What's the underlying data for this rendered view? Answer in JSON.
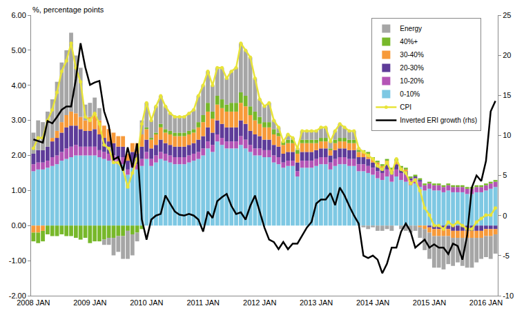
{
  "chart_data": {
    "type": "bar",
    "stacked": true,
    "y_label": "%, percentage points",
    "categories": [
      "2008 JAN",
      null,
      null,
      null,
      null,
      null,
      null,
      null,
      null,
      null,
      null,
      null,
      "2009 JAN",
      null,
      null,
      null,
      null,
      null,
      null,
      null,
      null,
      null,
      null,
      null,
      "2010 JAN",
      null,
      null,
      null,
      null,
      null,
      null,
      null,
      null,
      null,
      null,
      null,
      "2011 JAN",
      null,
      null,
      null,
      null,
      null,
      null,
      null,
      null,
      null,
      null,
      null,
      "2012 JAN",
      null,
      null,
      null,
      null,
      null,
      null,
      null,
      null,
      null,
      null,
      null,
      "2013 JAN",
      null,
      null,
      null,
      null,
      null,
      null,
      null,
      null,
      null,
      null,
      null,
      "2014 JAN",
      null,
      null,
      null,
      null,
      null,
      null,
      null,
      null,
      null,
      null,
      null,
      "2015 JAN",
      null,
      null,
      null,
      null,
      null,
      null,
      null,
      null,
      null,
      null,
      null,
      "2016 JAN",
      null,
      null
    ],
    "series": [
      {
        "name": "Energy",
        "type": "bar",
        "color": "#A6A6A6",
        "values": [
          0.6,
          0.85,
          0.8,
          1.0,
          1.1,
          1.4,
          1.7,
          1.85,
          2.25,
          1.65,
          1.4,
          0.45,
          0.4,
          0.45,
          0.35,
          -0.15,
          -0.2,
          -0.5,
          -0.45,
          -0.65,
          -0.8,
          -0.6,
          -0.25,
          0.4,
          0.7,
          0.5,
          0.75,
          0.8,
          0.65,
          0.5,
          0.45,
          0.45,
          0.45,
          0.5,
          0.55,
          0.75,
          0.85,
          0.9,
          0.75,
          0.8,
          0.9,
          0.75,
          0.9,
          1.0,
          1.4,
          1.3,
          1.4,
          0.95,
          0.5,
          0.45,
          0.55,
          0.25,
          0.15,
          0.0,
          0.15,
          0.05,
          0.05,
          0.25,
          0.25,
          0.25,
          0.25,
          0.3,
          0.3,
          0.2,
          0.25,
          0.4,
          0.3,
          0.25,
          0.25,
          0.05,
          -0.05,
          -0.1,
          -0.05,
          -0.15,
          -0.15,
          -0.1,
          -0.15,
          0.0,
          -0.1,
          -0.15,
          -0.2,
          -0.15,
          -0.3,
          -0.6,
          -0.75,
          -0.9,
          -0.9,
          -0.95,
          -0.8,
          -0.8,
          -0.7,
          -0.8,
          -0.85,
          -0.85,
          -0.7,
          -0.6,
          -0.6,
          -0.65,
          -0.55
        ]
      },
      {
        "name": "40%+",
        "type": "bar",
        "color": "#77B82A",
        "values": [
          -0.25,
          -0.3,
          -0.3,
          -0.25,
          -0.3,
          -0.3,
          -0.25,
          -0.3,
          -0.3,
          -0.35,
          -0.4,
          -0.35,
          -0.5,
          -0.45,
          -0.45,
          -0.4,
          -0.35,
          -0.35,
          -0.3,
          -0.3,
          -0.15,
          -0.25,
          -0.2,
          -0.1,
          0.05,
          0.05,
          0.05,
          0.1,
          0.1,
          0.1,
          0.1,
          0.1,
          0.1,
          0.1,
          0.1,
          0.15,
          0.2,
          0.25,
          0.2,
          0.25,
          0.25,
          0.2,
          0.25,
          0.25,
          0.3,
          0.3,
          0.25,
          0.25,
          0.2,
          0.15,
          0.15,
          0.15,
          0.1,
          0.1,
          0.1,
          0.1,
          0.1,
          0.1,
          0.1,
          0.1,
          0.1,
          0.1,
          0.1,
          0.05,
          0.1,
          0.1,
          0.1,
          0.1,
          0.1,
          0.05,
          0.05,
          0.05,
          0.05,
          0.05,
          0.05,
          0.05,
          0.05,
          0.05,
          0.05,
          0.05,
          0.05,
          0.05,
          0.05,
          0.05,
          0.05,
          0.05,
          0.05,
          0.05,
          0.05,
          0.05,
          0.05,
          0.05,
          0.05,
          0.05,
          0.05,
          0.05,
          0.05,
          0.05,
          0.05
        ]
      },
      {
        "name": "30-40%",
        "type": "bar",
        "color": "#F79A3A",
        "values": [
          -0.2,
          -0.2,
          -0.15,
          0.0,
          0.1,
          0.2,
          0.3,
          0.35,
          0.4,
          0.35,
          0.35,
          0.3,
          0.4,
          0.45,
          0.4,
          0.35,
          0.35,
          0.3,
          0.3,
          0.3,
          0.2,
          0.25,
          0.3,
          0.35,
          0.3,
          0.25,
          0.3,
          0.35,
          0.3,
          0.3,
          0.3,
          0.3,
          0.3,
          0.3,
          0.3,
          0.35,
          0.4,
          0.45,
          0.4,
          0.45,
          0.45,
          0.45,
          0.45,
          0.45,
          0.5,
          0.5,
          0.45,
          0.4,
          0.35,
          0.35,
          0.35,
          0.3,
          0.3,
          0.25,
          0.25,
          0.25,
          0.25,
          0.25,
          0.25,
          0.25,
          0.2,
          0.2,
          0.2,
          0.15,
          0.2,
          0.2,
          0.2,
          0.2,
          0.2,
          0.15,
          0.15,
          0.15,
          0.1,
          0.1,
          0.05,
          0.1,
          0.05,
          0.1,
          0.05,
          0.05,
          0.0,
          0.0,
          -0.05,
          -0.1,
          -0.15,
          -0.2,
          -0.2,
          -0.2,
          -0.2,
          -0.2,
          -0.2,
          -0.2,
          -0.2,
          -0.2,
          -0.2,
          -0.2,
          -0.2,
          -0.2,
          -0.15
        ]
      },
      {
        "name": "20-30%",
        "type": "bar",
        "color": "#5E3C99",
        "values": [
          0.3,
          0.35,
          0.35,
          0.4,
          0.45,
          0.5,
          0.55,
          0.6,
          0.6,
          0.55,
          0.5,
          0.45,
          0.45,
          0.5,
          0.45,
          0.4,
          0.35,
          0.35,
          0.3,
          0.3,
          0.25,
          0.3,
          0.3,
          0.35,
          0.35,
          0.3,
          0.3,
          0.35,
          0.3,
          0.3,
          0.3,
          0.3,
          0.3,
          0.3,
          0.3,
          0.35,
          0.35,
          0.4,
          0.35,
          0.4,
          0.4,
          0.4,
          0.4,
          0.4,
          0.45,
          0.45,
          0.4,
          0.4,
          0.35,
          0.3,
          0.3,
          0.3,
          0.3,
          0.25,
          0.25,
          0.25,
          0.25,
          0.25,
          0.25,
          0.25,
          0.25,
          0.25,
          0.25,
          0.2,
          0.25,
          0.25,
          0.25,
          0.25,
          0.25,
          0.2,
          0.2,
          0.2,
          0.15,
          0.15,
          0.15,
          0.15,
          0.1,
          0.15,
          0.1,
          0.1,
          0.05,
          0.05,
          0.05,
          0.0,
          -0.05,
          -0.1,
          -0.1,
          -0.1,
          -0.1,
          -0.15,
          -0.15,
          -0.15,
          -0.15,
          -0.15,
          -0.15,
          -0.15,
          -0.1,
          -0.1,
          -0.1
        ]
      },
      {
        "name": "10-20%",
        "type": "bar",
        "color": "#B455B6",
        "values": [
          0.2,
          0.2,
          0.2,
          0.2,
          0.25,
          0.25,
          0.25,
          0.3,
          0.3,
          0.3,
          0.25,
          0.25,
          0.25,
          0.25,
          0.2,
          0.2,
          0.2,
          0.2,
          0.2,
          0.2,
          0.15,
          0.15,
          0.15,
          0.2,
          0.2,
          0.2,
          0.2,
          0.2,
          0.2,
          0.2,
          0.2,
          0.2,
          0.2,
          0.2,
          0.2,
          0.2,
          0.2,
          0.2,
          0.2,
          0.2,
          0.2,
          0.2,
          0.2,
          0.2,
          0.25,
          0.25,
          0.2,
          0.2,
          0.2,
          0.2,
          0.2,
          0.2,
          0.2,
          0.15,
          0.15,
          0.15,
          0.15,
          0.2,
          0.2,
          0.2,
          0.2,
          0.2,
          0.2,
          0.2,
          0.2,
          0.2,
          0.2,
          0.2,
          0.2,
          0.2,
          0.2,
          0.2,
          0.2,
          0.2,
          0.2,
          0.2,
          0.2,
          0.2,
          0.2,
          0.2,
          0.15,
          0.15,
          0.15,
          0.15,
          0.15,
          0.15,
          0.15,
          0.15,
          0.15,
          0.15,
          0.15,
          0.15,
          0.15,
          0.15,
          0.15,
          0.15,
          0.15,
          0.15,
          0.15
        ]
      },
      {
        "name": "0-10%",
        "type": "bar",
        "color": "#7EC8E3",
        "values": [
          1.55,
          1.6,
          1.6,
          1.65,
          1.7,
          1.75,
          1.85,
          1.9,
          1.95,
          2.0,
          2.0,
          2.0,
          2.0,
          2.0,
          1.95,
          1.9,
          1.85,
          1.8,
          1.75,
          1.75,
          1.45,
          1.65,
          1.6,
          1.7,
          1.9,
          1.7,
          1.8,
          1.9,
          1.85,
          1.8,
          1.75,
          1.75,
          1.75,
          1.8,
          1.85,
          1.9,
          2.0,
          2.2,
          2.1,
          2.4,
          2.3,
          2.2,
          2.2,
          2.2,
          2.3,
          2.2,
          2.1,
          2.0,
          2.0,
          1.95,
          1.95,
          1.8,
          1.75,
          1.65,
          1.7,
          1.7,
          1.4,
          1.65,
          1.65,
          1.65,
          1.7,
          1.75,
          1.75,
          1.6,
          1.7,
          1.75,
          1.75,
          1.7,
          1.7,
          1.55,
          1.55,
          1.5,
          1.45,
          1.35,
          1.3,
          1.4,
          1.25,
          1.4,
          1.3,
          1.25,
          1.15,
          1.2,
          1.1,
          1.0,
          1.05,
          1.0,
          1.0,
          0.95,
          1.0,
          0.95,
          0.95,
          0.95,
          0.9,
          0.9,
          0.95,
          0.95,
          1.0,
          1.05,
          1.1
        ]
      },
      {
        "name": "CPI",
        "type": "line",
        "color": "#E8E43A",
        "marker": "circle",
        "values": [
          2.2,
          2.5,
          2.5,
          3.0,
          3.3,
          3.8,
          4.4,
          4.7,
          5.2,
          4.5,
          4.1,
          3.1,
          3.0,
          3.2,
          2.9,
          2.3,
          2.2,
          1.8,
          1.8,
          1.6,
          1.1,
          1.5,
          1.9,
          2.9,
          3.5,
          3.0,
          3.4,
          3.7,
          3.4,
          3.2,
          3.1,
          3.1,
          3.1,
          3.2,
          3.3,
          3.7,
          4.0,
          4.4,
          4.0,
          4.5,
          4.5,
          4.2,
          4.4,
          4.5,
          5.2,
          5.0,
          4.8,
          4.2,
          3.6,
          3.4,
          3.5,
          3.0,
          2.8,
          2.4,
          2.6,
          2.5,
          2.2,
          2.7,
          2.7,
          2.7,
          2.7,
          2.8,
          2.8,
          2.4,
          2.7,
          2.9,
          2.8,
          2.7,
          2.7,
          2.2,
          2.1,
          2.0,
          1.9,
          1.7,
          1.6,
          1.8,
          1.5,
          1.9,
          1.6,
          1.5,
          1.2,
          1.3,
          1.0,
          0.5,
          0.3,
          0.0,
          0.0,
          -0.1,
          0.1,
          0.0,
          0.1,
          0.0,
          -0.1,
          -0.1,
          0.1,
          0.2,
          0.3,
          0.3,
          0.5
        ]
      },
      {
        "name": "Inverted ERI growth (rhs)",
        "type": "line",
        "axis": "y2",
        "color": "#000000",
        "values": [
          9.5,
          9.3,
          9.1,
          11.8,
          11.5,
          12.3,
          13.2,
          13.6,
          13.6,
          17.0,
          21.5,
          18.5,
          16.3,
          16.6,
          16.8,
          13.0,
          11.2,
          7.0,
          7.3,
          5.6,
          8.5,
          6.0,
          9.0,
          -0.5,
          -3.0,
          -0.5,
          0.0,
          0.2,
          2.5,
          1.5,
          0.5,
          0.1,
          0.0,
          0.2,
          0.0,
          -0.5,
          -2.0,
          0.5,
          -0.3,
          1.8,
          2.3,
          2.7,
          1.2,
          0.2,
          0.4,
          -0.5,
          1.2,
          2.5,
          0.5,
          -1.5,
          -3.0,
          -3.3,
          -4.2,
          -3.3,
          -4.2,
          -3.5,
          -3.5,
          -2.5,
          -1.5,
          -0.8,
          1.5,
          2.0,
          2.0,
          2.8,
          1.3,
          3.5,
          2.5,
          1.2,
          0.0,
          -1.0,
          -5.0,
          -5.3,
          -5.0,
          -5.5,
          -7.2,
          -6.0,
          -4.0,
          -4.0,
          -2.0,
          -1.0,
          -2.0,
          -4.0,
          -3.5,
          -3.0,
          -4.0,
          -3.6,
          -4.0,
          -4.0,
          -4.8,
          -3.5,
          -3.8,
          -5.5,
          -2.5,
          3.5,
          5.0,
          4.3,
          6.8,
          13.0,
          14.3
        ]
      }
    ],
    "ylim": [
      -2,
      6
    ],
    "yticks": [
      {
        "value": -2,
        "label": "-2.00"
      },
      {
        "value": -1,
        "label": "-1.00"
      },
      {
        "value": 0,
        "label": "0.00"
      },
      {
        "value": 1,
        "label": "1.00"
      },
      {
        "value": 2,
        "label": "2.00"
      },
      {
        "value": 3,
        "label": "3.00"
      },
      {
        "value": 4,
        "label": "4.00"
      },
      {
        "value": 5,
        "label": "5.00"
      },
      {
        "value": 6,
        "label": "6.00"
      }
    ],
    "y2lim": [
      -10,
      25
    ],
    "y2ticks": [
      -10,
      -5,
      0,
      5,
      10,
      15,
      20,
      25
    ],
    "grid": false,
    "legend": "top right"
  }
}
